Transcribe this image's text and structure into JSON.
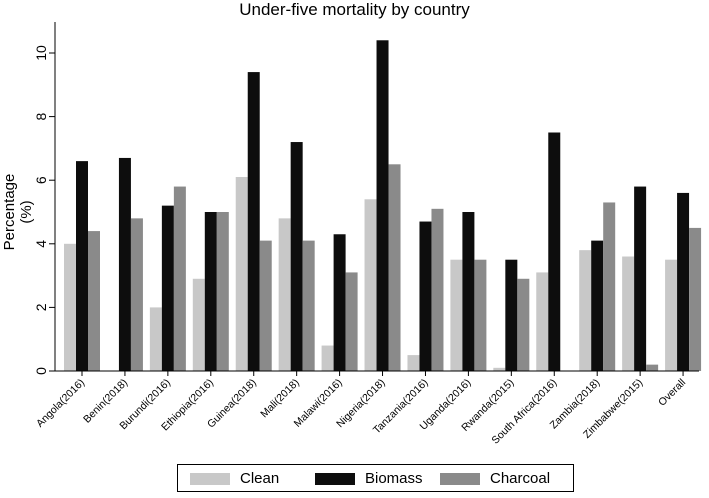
{
  "chart_data": {
    "type": "bar",
    "title": "Under-five mortality by country",
    "xlabel": "",
    "ylabel": "Percentage (%)",
    "ylim": [
      0,
      11
    ],
    "yticks": [
      0,
      2,
      4,
      6,
      8,
      10
    ],
    "categories": [
      "Angola(2016)",
      "Benin(2018)",
      "Burundi(2016)",
      "Ethiopia(2016)",
      "Guinea(2018)",
      "Mali(2018)",
      "Malawi(2016)",
      "Nigeria(2018)",
      "Tanzania(2016)",
      "Uganda(2016)",
      "Rwanda(2015)",
      "South Africa(2016)",
      "Zambia(2018)",
      "Zimbabwe(2015)",
      "Overall"
    ],
    "series": [
      {
        "name": "Clean",
        "color": "#c8c8c8",
        "values": [
          4.0,
          null,
          2.0,
          2.9,
          6.1,
          4.8,
          0.8,
          5.4,
          0.5,
          3.5,
          0.1,
          3.1,
          3.8,
          3.6,
          3.5
        ]
      },
      {
        "name": "Biomass",
        "color": "#0d0d0d",
        "values": [
          6.6,
          6.7,
          5.2,
          5.0,
          9.4,
          7.2,
          4.3,
          10.4,
          4.7,
          5.0,
          3.5,
          7.5,
          4.1,
          5.8,
          5.6
        ]
      },
      {
        "name": "Charcoal",
        "color": "#8a8a8a",
        "values": [
          4.4,
          4.8,
          5.8,
          5.0,
          4.1,
          4.1,
          3.1,
          6.5,
          5.1,
          3.5,
          2.9,
          null,
          5.3,
          0.2,
          4.5
        ]
      }
    ],
    "legend_position": "bottom",
    "grid": false
  }
}
